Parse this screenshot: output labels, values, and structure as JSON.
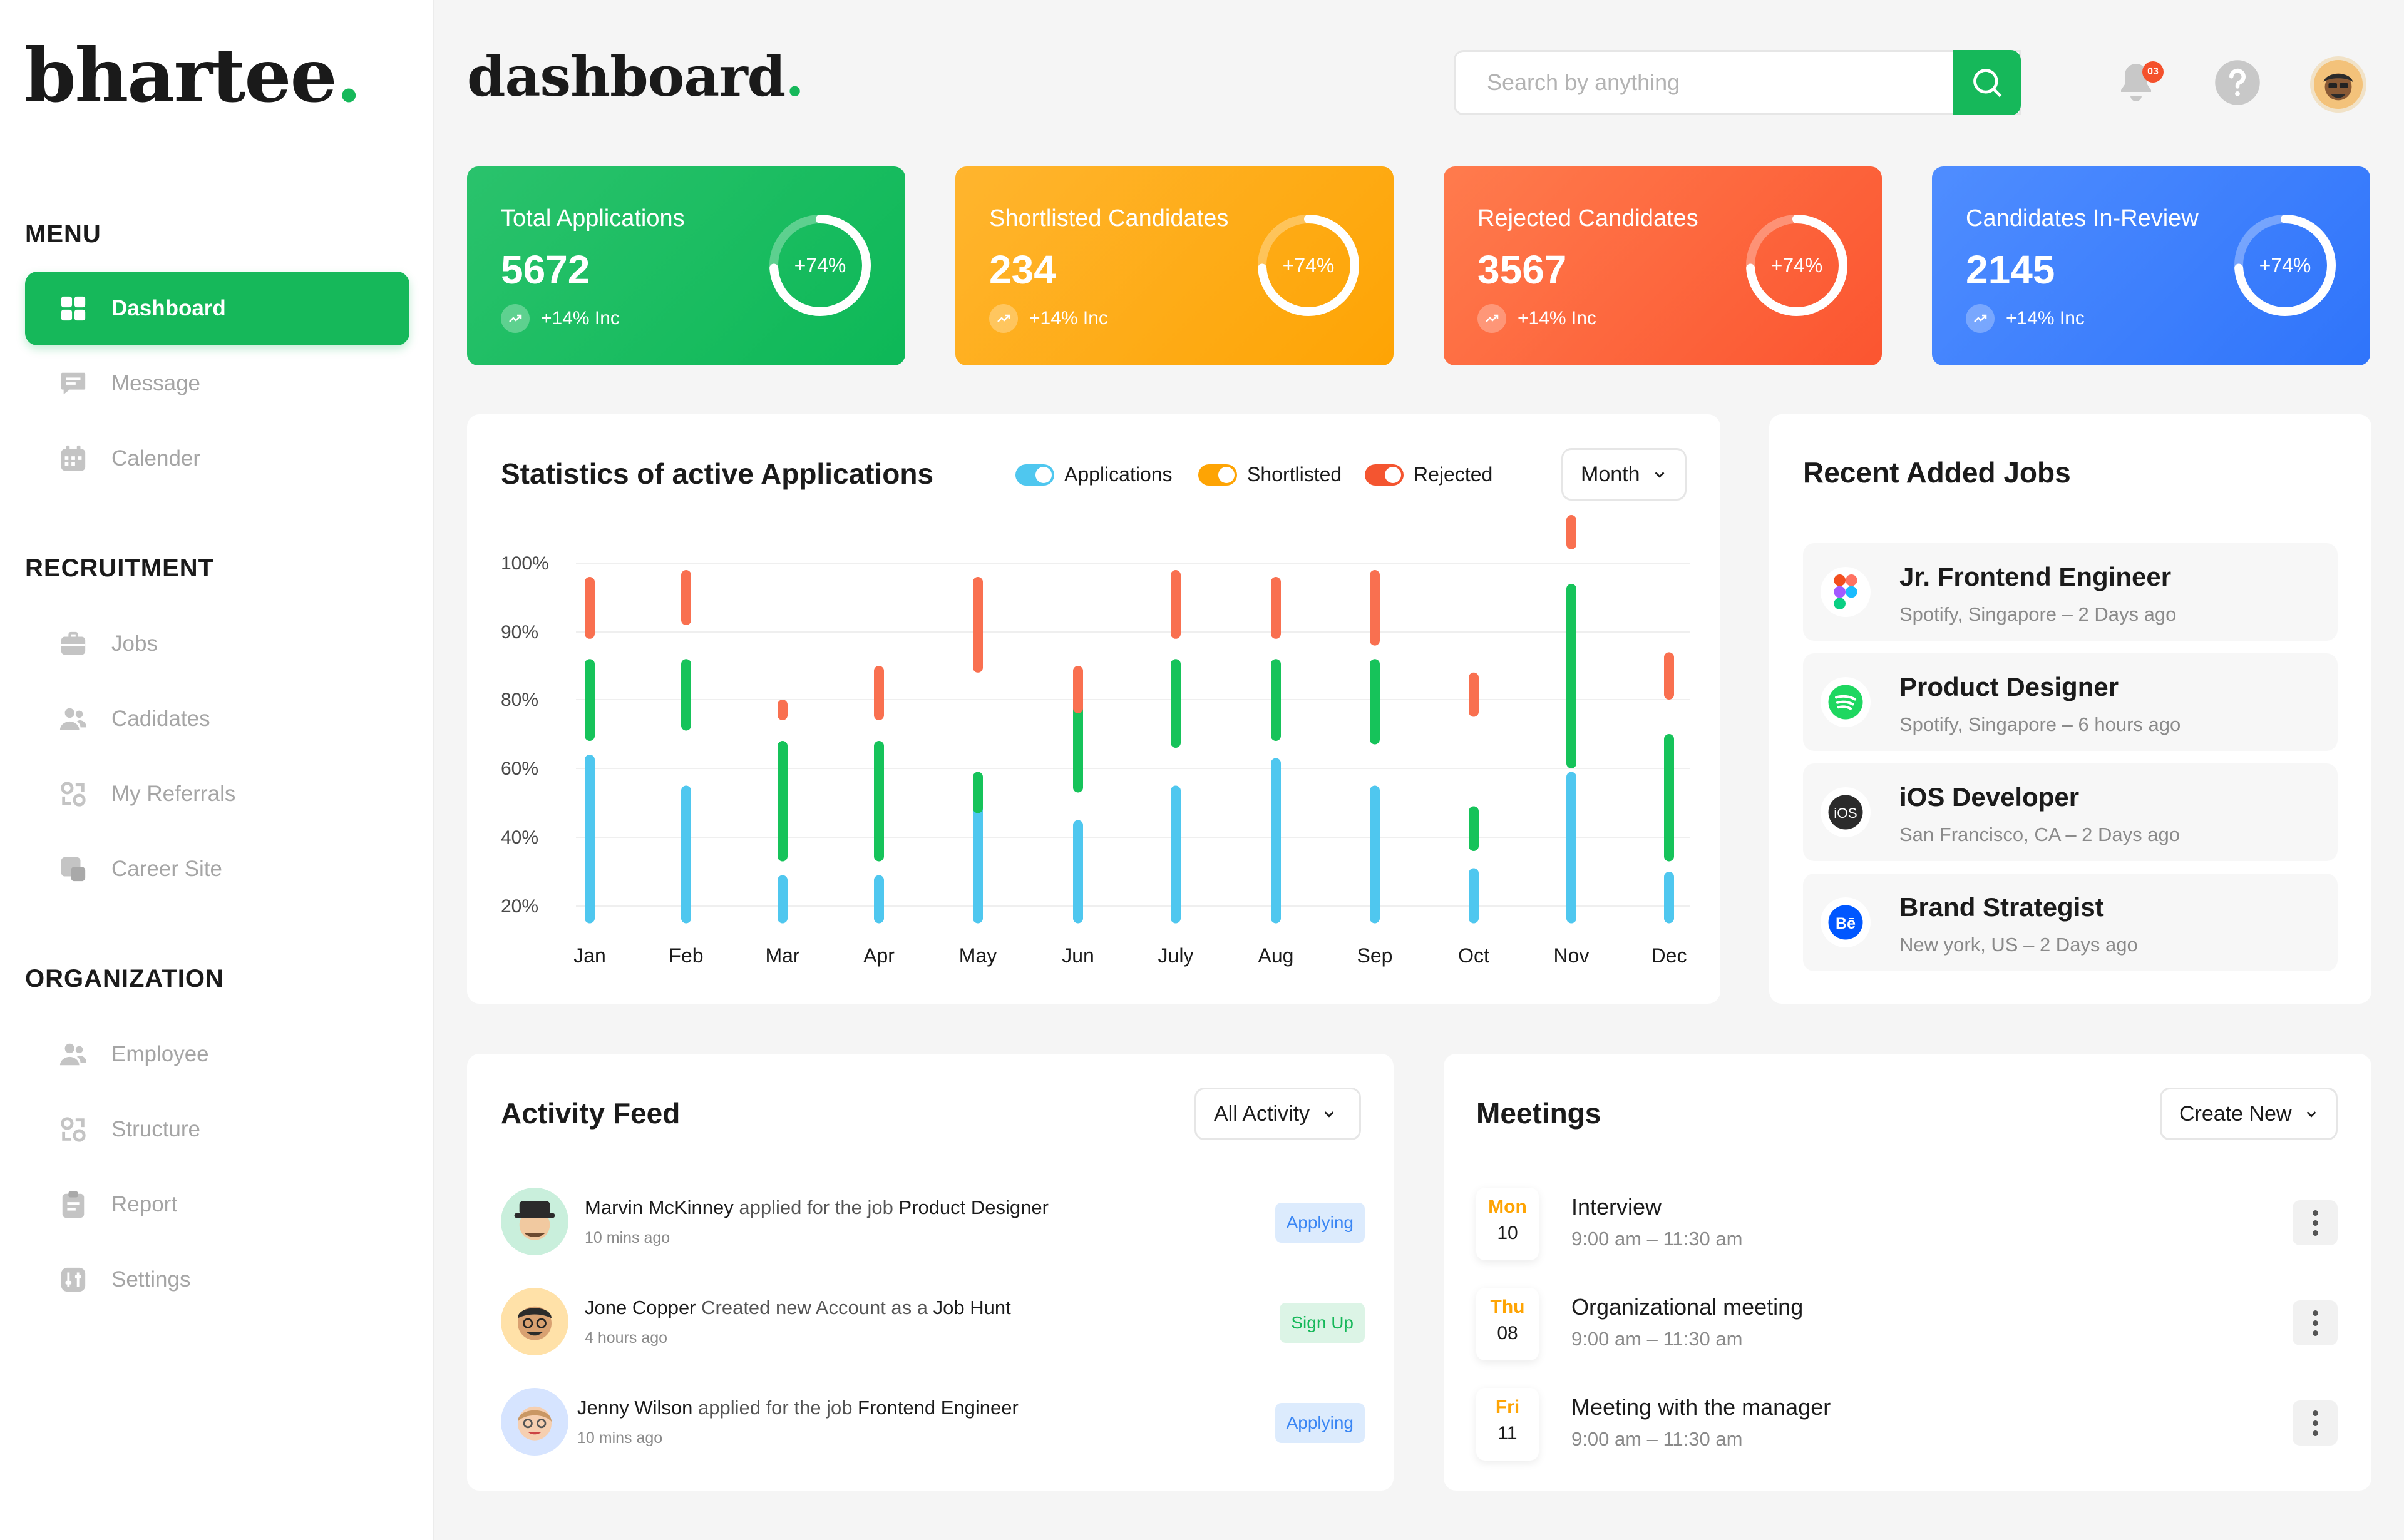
{
  "brand": {
    "name": "bhartee",
    "dot": ".",
    "accent": "#16b85a"
  },
  "header": {
    "title": "dashboard",
    "dot": ".",
    "search_placeholder": "Search by anything",
    "notification_count": "03",
    "icons": [
      "bell-icon",
      "help-icon",
      "avatar"
    ]
  },
  "sidebar": {
    "sections": [
      {
        "title": "MENU",
        "items": [
          {
            "label": "Dashboard",
            "icon": "grid-icon",
            "active": true
          },
          {
            "label": "Message",
            "icon": "message-icon"
          },
          {
            "label": "Calender",
            "icon": "calendar-icon"
          }
        ]
      },
      {
        "title": "RECRUITMENT",
        "items": [
          {
            "label": "Jobs",
            "icon": "briefcase-icon"
          },
          {
            "label": "Cadidates",
            "icon": "users-icon"
          },
          {
            "label": "My Referrals",
            "icon": "referral-icon"
          },
          {
            "label": "Career Site",
            "icon": "site-icon"
          }
        ]
      },
      {
        "title": "ORGANIZATION",
        "items": [
          {
            "label": "Employee",
            "icon": "users-icon"
          },
          {
            "label": "Structure",
            "icon": "structure-icon"
          },
          {
            "label": "Report",
            "icon": "clipboard-icon"
          },
          {
            "label": "Settings",
            "icon": "settings-icon"
          }
        ]
      }
    ]
  },
  "stats": [
    {
      "label": "Total Applications",
      "value": "5672",
      "pct": "+74%",
      "inc": "+14% Inc",
      "color_from": "#2ac26c",
      "color_to": "#0db857",
      "ring_fraction": 0.74
    },
    {
      "label": "Shortlisted Candidates",
      "value": "234",
      "pct": "+74%",
      "inc": "+14% Inc",
      "color_from": "#ffb52e",
      "color_to": "#fea404",
      "ring_fraction": 0.74
    },
    {
      "label": "Rejected Candidates",
      "value": "3567",
      "pct": "+74%",
      "inc": "+14% Inc",
      "color_from": "#ff7b4d",
      "color_to": "#fb5530",
      "ring_fraction": 0.74
    },
    {
      "label": "Candidates In-Review",
      "value": "2145",
      "pct": "+74%",
      "inc": "+14% Inc",
      "color_from": "#4f8dff",
      "color_to": "#2f74fa",
      "ring_fraction": 0.74
    }
  ],
  "statistics": {
    "title": "Statistics of active Applications",
    "filter": "Month",
    "legend": [
      {
        "label": "Applications",
        "color": "#4fc7ef"
      },
      {
        "label": "Shortlisted",
        "color": "#fea404"
      },
      {
        "label": "Rejected",
        "color": "#f45530"
      }
    ]
  },
  "chart_data": {
    "type": "bar",
    "stacked": true,
    "categories": [
      "Jan",
      "Feb",
      "Mar",
      "Apr",
      "May",
      "Jun",
      "July",
      "Aug",
      "Sep",
      "Oct",
      "Nov",
      "Dec"
    ],
    "yticks": [
      "100%",
      "90%",
      "80%",
      "60%",
      "40%",
      "20%"
    ],
    "series": [
      {
        "name": "Applications",
        "color": "#4fc7ef",
        "ranges": [
          [
            15,
            64
          ],
          [
            15,
            55
          ],
          [
            15,
            29
          ],
          [
            15,
            29
          ],
          [
            15,
            58
          ],
          [
            15,
            45
          ],
          [
            15,
            55
          ],
          [
            15,
            63
          ],
          [
            15,
            55
          ],
          [
            15,
            31
          ],
          [
            15,
            59
          ],
          [
            15,
            30
          ]
        ]
      },
      {
        "name": "Shortlisted",
        "color": "#16c35a",
        "ranges": [
          [
            68,
            86
          ],
          [
            71,
            86
          ],
          [
            33,
            68
          ],
          [
            33,
            68
          ],
          [
            47,
            59
          ],
          [
            53,
            79
          ],
          [
            66,
            86
          ],
          [
            68,
            86
          ],
          [
            67,
            86
          ],
          [
            36,
            49
          ],
          [
            60,
            97
          ],
          [
            33,
            70
          ]
        ]
      },
      {
        "name": "Rejected",
        "color": "#f97050",
        "ranges": [
          [
            89,
            98
          ],
          [
            91,
            99
          ],
          [
            74,
            80
          ],
          [
            74,
            85
          ],
          [
            84,
            98
          ],
          [
            76,
            85
          ],
          [
            89,
            99
          ],
          [
            89,
            98
          ],
          [
            88,
            99
          ],
          [
            75,
            84
          ],
          [
            102,
            107
          ],
          [
            80,
            87
          ]
        ]
      }
    ]
  },
  "recent_jobs": {
    "title": "Recent Added Jobs",
    "items": [
      {
        "title": "Jr. Frontend Engineer",
        "sub": "Spotify, Singapore  –  2 Days ago",
        "icon": "figma-icon"
      },
      {
        "title": "Product Designer",
        "sub": "Spotify, Singapore  –  6 hours ago",
        "icon": "spotify-icon"
      },
      {
        "title": "iOS Developer",
        "sub": "San Francisco, CA  –  2 Days ago",
        "icon": "ios-icon"
      },
      {
        "title": "Brand Strategist",
        "sub": "New york, US  –  2 Days ago",
        "icon": "behance-icon"
      }
    ]
  },
  "activity": {
    "title": "Activity Feed",
    "filter": "All Activity",
    "items": [
      {
        "name": "Marvin McKinney",
        "mid": " applied for the job ",
        "target": "Product Designer",
        "time": "10 mins ago",
        "tag": "Applying",
        "tag_bg": "#dcebfd",
        "tag_fg": "#3a86f4",
        "ava_bg": "#c9efdc"
      },
      {
        "name": "Jone Copper",
        "mid": " Created new Account as a ",
        "target": "Job Hunt",
        "time": "4 hours ago",
        "tag": "Sign Up",
        "tag_bg": "#dcf4e6",
        "tag_fg": "#16b85a",
        "ava_bg": "#ffe1a8"
      },
      {
        "name": "Jenny Wilson",
        "mid": "  applied for the job ",
        "target": "Frontend Engineer",
        "time": "10 mins ago",
        "tag": "Applying",
        "tag_bg": "#dcebfd",
        "tag_fg": "#3a86f4",
        "ava_bg": "#d6e4ff"
      }
    ]
  },
  "meetings": {
    "title": "Meetings",
    "action": "Create New",
    "items": [
      {
        "day": "Mon",
        "num": "10",
        "title": "Interview",
        "time": "9:00 am – 11:30 am"
      },
      {
        "day": "Thu",
        "num": "08",
        "title": "Organizational meeting",
        "time": "9:00 am – 11:30 am"
      },
      {
        "day": "Fri",
        "num": "11",
        "title": "Meeting with the manager",
        "time": "9:00 am – 11:30 am"
      }
    ]
  }
}
